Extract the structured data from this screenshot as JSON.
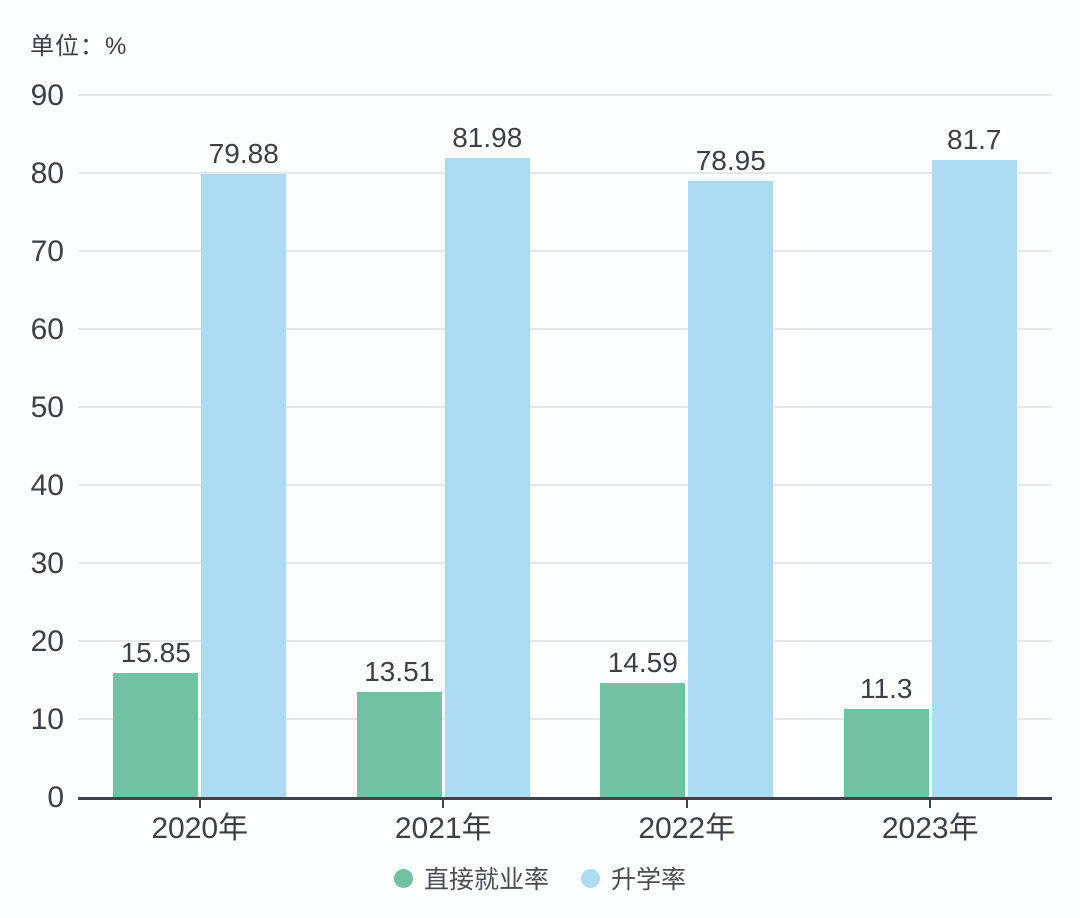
{
  "chart_data": {
    "type": "bar",
    "unit_label": "单位：%",
    "categories": [
      "2020年",
      "2021年",
      "2022年",
      "2023年"
    ],
    "series": [
      {
        "id": "direct-employment-rate",
        "name": "直接就业率",
        "color": "#71c2a2",
        "values": [
          15.85,
          13.51,
          14.59,
          11.3
        ]
      },
      {
        "id": "enrollment-rate",
        "name": "升学率",
        "color": "#abdcf2",
        "values": [
          79.88,
          81.98,
          78.95,
          81.7
        ]
      }
    ],
    "ylim": [
      0,
      90
    ],
    "ytick_step": 10,
    "yticks": [
      0,
      10,
      20,
      30,
      40,
      50,
      60,
      70,
      80,
      90
    ],
    "grid": true,
    "legend_position": "bottom",
    "colors": {
      "axis": "#3e4347",
      "gridline": "#e5e7e9",
      "text": "#3c4043",
      "legend_text": "#4a4e52",
      "background": "#fdfefe"
    }
  }
}
